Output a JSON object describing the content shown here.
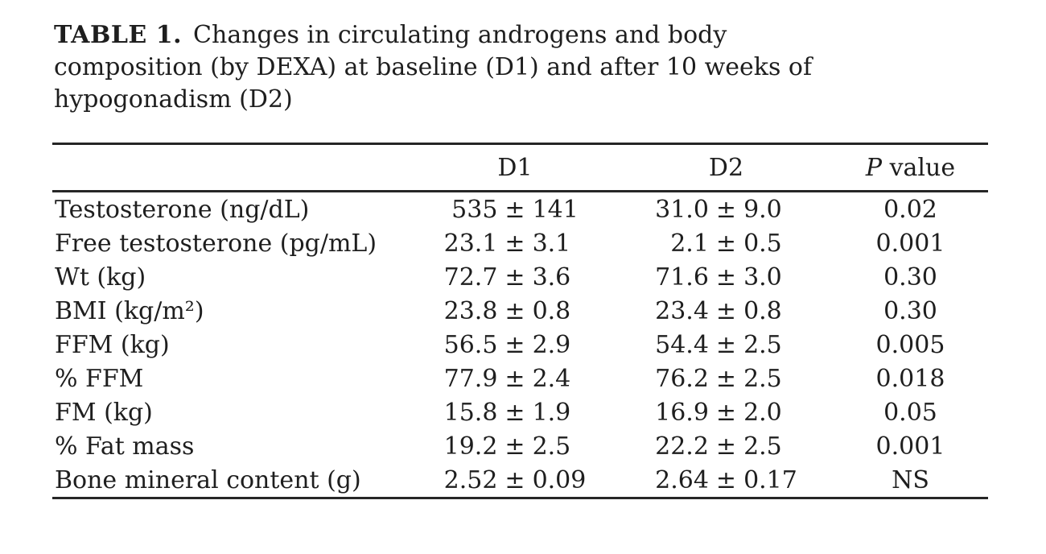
{
  "page": {
    "background": "#ffffff",
    "text_color": "#1e1e1e",
    "rule_color": "#262626"
  },
  "title": {
    "prefix": "TABLE 1.",
    "lines": [
      "Changes in circulating androgens and body",
      "composition (by DEXA) at baseline (D1) and after 10 weeks of",
      "hypogonadism (D2)"
    ]
  },
  "table": {
    "plus_minus": "±",
    "header": {
      "empty": "",
      "d1": "D1",
      "d2": "D2",
      "p_italic": "P",
      "p_rest": " value"
    },
    "rows": [
      {
        "label": "Testosterone (ng/dL)",
        "d1_mean": "535",
        "d1_sd": "141",
        "d2_mean": "31.0",
        "d2_sd": "9.0",
        "p": "0.02"
      },
      {
        "label": "Free testosterone (pg/mL)",
        "d1_mean": "23.1",
        "d1_sd": "3.1",
        "d2_mean": "2.1",
        "d2_sd": "0.5",
        "p": "0.001"
      },
      {
        "label": "Wt (kg)",
        "d1_mean": "72.7",
        "d1_sd": "3.6",
        "d2_mean": "71.6",
        "d2_sd": "3.0",
        "p": "0.30"
      },
      {
        "label": "BMI (kg/m²)",
        "d1_mean": "23.8",
        "d1_sd": "0.8",
        "d2_mean": "23.4",
        "d2_sd": "0.8",
        "p": "0.30"
      },
      {
        "label": "FFM (kg)",
        "d1_mean": "56.5",
        "d1_sd": "2.9",
        "d2_mean": "54.4",
        "d2_sd": "2.5",
        "p": "0.005"
      },
      {
        "label": "% FFM",
        "d1_mean": "77.9",
        "d1_sd": "2.4",
        "d2_mean": "76.2",
        "d2_sd": "2.5",
        "p": "0.018"
      },
      {
        "label": "FM (kg)",
        "d1_mean": "15.8",
        "d1_sd": "1.9",
        "d2_mean": "16.9",
        "d2_sd": "2.0",
        "p": "0.05"
      },
      {
        "label": "% Fat mass",
        "d1_mean": "19.2",
        "d1_sd": "2.5",
        "d2_mean": "22.2",
        "d2_sd": "2.5",
        "p": "0.001"
      },
      {
        "label": "Bone mineral content (g)",
        "d1_mean": "2.52",
        "d1_sd": "0.09",
        "d2_mean": "2.64",
        "d2_sd": "0.17",
        "p": "NS"
      }
    ]
  }
}
